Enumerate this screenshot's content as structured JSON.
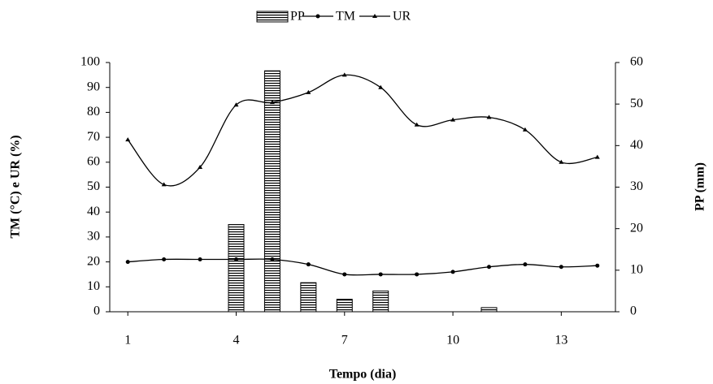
{
  "chart_data": {
    "type": "combo",
    "x": [
      1,
      2,
      3,
      4,
      5,
      6,
      7,
      8,
      9,
      10,
      11,
      12,
      13,
      14
    ],
    "xlim": [
      0.5,
      14.5
    ],
    "xticks": [
      1,
      4,
      7,
      10,
      13
    ],
    "ylim": [
      0,
      100
    ],
    "yticks": [
      0,
      10,
      20,
      30,
      40,
      50,
      60,
      70,
      80,
      90,
      100
    ],
    "y2lim": [
      0,
      60
    ],
    "y2ticks": [
      0,
      10,
      20,
      30,
      40,
      50,
      60
    ],
    "x_label": "Tempo (dia)",
    "y_label": "TM (°C) e UR (%)",
    "y2_label": "PP (mm)",
    "legend": "top",
    "series": [
      {
        "name": "PP",
        "type": "bar",
        "axis": "y2",
        "color": "#000000",
        "values": [
          0,
          0,
          0,
          21,
          58,
          7,
          3,
          5,
          0,
          0,
          1,
          0,
          0,
          0
        ]
      },
      {
        "name": "TM",
        "type": "line",
        "marker": "circle",
        "color": "#000000",
        "values": [
          20,
          21,
          21,
          21,
          21,
          19,
          15,
          15,
          15,
          16,
          18,
          19,
          18,
          18.5
        ]
      },
      {
        "name": "UR",
        "type": "line",
        "marker": "triangle",
        "color": "#000000",
        "values": [
          69,
          51,
          58,
          83,
          84,
          88,
          95,
          90,
          75,
          77,
          78,
          73,
          60,
          62
        ]
      }
    ]
  }
}
